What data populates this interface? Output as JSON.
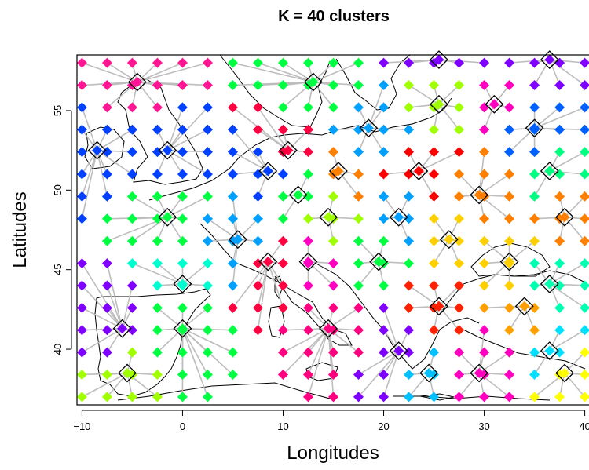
{
  "chart_data": {
    "type": "scatter",
    "title": "K = 40 clusters",
    "xlabel": "Longitudes",
    "ylabel": "Latitudes",
    "xlim": [
      -10.5,
      40.5
    ],
    "ylim": [
      36.5,
      58.5
    ],
    "xticks": [
      -10,
      0,
      10,
      20,
      30,
      40
    ],
    "yticks": [
      40,
      45,
      50,
      55
    ],
    "xtick_labels": [
      "−10",
      "0",
      "10",
      "20",
      "30",
      "40"
    ],
    "ytick_labels": [
      "40",
      "45",
      "50",
      "55"
    ],
    "grid": false,
    "background_map": "Europe coastlines",
    "marker": "diamond",
    "center_marker": "large outlined diamond",
    "grid_points": {
      "lon_step": 2.5,
      "lat_step": 1.4,
      "lon_range": [
        -10,
        40
      ],
      "lat_range": [
        37,
        58.2
      ]
    },
    "cluster_centers": [
      {
        "lon": -4.5,
        "lat": 56.8,
        "color": "#FF1493"
      },
      {
        "lon": -8.5,
        "lat": 52.5,
        "color": "#0040FF"
      },
      {
        "lon": -1.5,
        "lat": 52.5,
        "color": "#0040FF"
      },
      {
        "lon": 13.0,
        "lat": 56.8,
        "color": "#00FF40"
      },
      {
        "lon": 25.5,
        "lat": 58.2,
        "color": "#8000FF"
      },
      {
        "lon": 36.5,
        "lat": 58.2,
        "color": "#8000FF"
      },
      {
        "lon": 25.5,
        "lat": 55.4,
        "color": "#A0FF00"
      },
      {
        "lon": 31.0,
        "lat": 55.4,
        "color": "#FF00C0"
      },
      {
        "lon": 35.0,
        "lat": 53.9,
        "color": "#0060FF"
      },
      {
        "lon": 10.5,
        "lat": 52.5,
        "color": "#FF0040"
      },
      {
        "lon": 18.5,
        "lat": 53.9,
        "color": "#00A0FF"
      },
      {
        "lon": 8.5,
        "lat": 51.2,
        "color": "#0040FF"
      },
      {
        "lon": 11.5,
        "lat": 49.7,
        "color": "#00FF40"
      },
      {
        "lon": 15.5,
        "lat": 51.2,
        "color": "#FF8000"
      },
      {
        "lon": 23.5,
        "lat": 51.2,
        "color": "#FF0000"
      },
      {
        "lon": 29.5,
        "lat": 49.7,
        "color": "#FF8000"
      },
      {
        "lon": 36.5,
        "lat": 51.2,
        "color": "#00FF80"
      },
      {
        "lon": -1.5,
        "lat": 48.3,
        "color": "#00FF40"
      },
      {
        "lon": 5.5,
        "lat": 46.9,
        "color": "#00A0FF"
      },
      {
        "lon": 14.5,
        "lat": 48.3,
        "color": "#A0FF00"
      },
      {
        "lon": 21.5,
        "lat": 48.3,
        "color": "#00A0FF"
      },
      {
        "lon": 26.5,
        "lat": 46.9,
        "color": "#FFD000"
      },
      {
        "lon": 38.0,
        "lat": 48.3,
        "color": "#FF8000"
      },
      {
        "lon": 0.0,
        "lat": 44.1,
        "color": "#00FFD0"
      },
      {
        "lon": 8.5,
        "lat": 45.5,
        "color": "#FF0040"
      },
      {
        "lon": 12.5,
        "lat": 45.5,
        "color": "#FF00C0"
      },
      {
        "lon": 19.5,
        "lat": 45.5,
        "color": "#00FF40"
      },
      {
        "lon": 32.5,
        "lat": 45.5,
        "color": "#FFD000"
      },
      {
        "lon": 36.5,
        "lat": 44.1,
        "color": "#00FFB0"
      },
      {
        "lon": -6.0,
        "lat": 41.3,
        "color": "#8000FF"
      },
      {
        "lon": 0.0,
        "lat": 41.3,
        "color": "#00FF40"
      },
      {
        "lon": 25.5,
        "lat": 42.7,
        "color": "#FF2000"
      },
      {
        "lon": 34.0,
        "lat": 42.7,
        "color": "#FFA000"
      },
      {
        "lon": 14.5,
        "lat": 41.3,
        "color": "#FF0080"
      },
      {
        "lon": 21.5,
        "lat": 39.9,
        "color": "#8000FF"
      },
      {
        "lon": 36.5,
        "lat": 39.9,
        "color": "#00E0FF"
      },
      {
        "lon": -5.5,
        "lat": 38.5,
        "color": "#A0FF00"
      },
      {
        "lon": 24.5,
        "lat": 38.5,
        "color": "#00C0FF"
      },
      {
        "lon": 29.5,
        "lat": 38.5,
        "color": "#FF00C0"
      },
      {
        "lon": 38.0,
        "lat": 38.5,
        "color": "#FFFF00"
      }
    ]
  }
}
